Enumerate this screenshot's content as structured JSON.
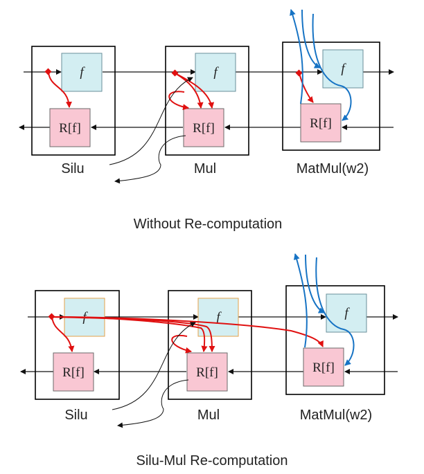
{
  "top": {
    "ops": [
      {
        "label": "Silu",
        "f": "f",
        "r": "R[f]"
      },
      {
        "label": "Mul",
        "f": "f",
        "r": "R[f]"
      },
      {
        "label": "MatMul(w2)",
        "f": "f",
        "r": "R[f]"
      }
    ],
    "caption": "Without Re-computation"
  },
  "bottom": {
    "ops": [
      {
        "label": "Silu",
        "f": "f",
        "r": "R[f]"
      },
      {
        "label": "Mul",
        "f": "f",
        "r": "R[f]"
      },
      {
        "label": "MatMul(w2)",
        "f": "f",
        "r": "R[f]"
      }
    ],
    "caption": "Silu-Mul Re-computation"
  },
  "colors": {
    "recompute_arrow": "#e01010",
    "memory_arrow": "#1673c4",
    "f_fill": "#d3eef2",
    "r_fill": "#f9c7d3"
  }
}
